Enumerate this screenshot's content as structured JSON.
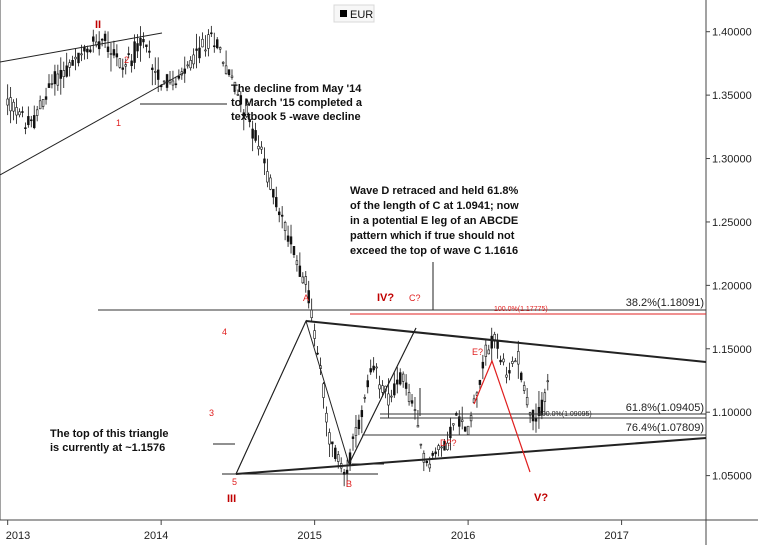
{
  "chart_data": {
    "type": "candlestick",
    "legend": {
      "label": "EUR",
      "swatch_color": "#000000",
      "placement": "top-center"
    },
    "y_axis": {
      "ticks": [
        "1.40000",
        "1.35000",
        "1.30000",
        "1.25000",
        "1.20000",
        "1.15000",
        "1.10000",
        "1.05000"
      ],
      "tick_values": [
        1.4,
        1.35,
        1.3,
        1.25,
        1.2,
        1.15,
        1.1,
        1.05
      ],
      "range": [
        1.015,
        1.425
      ]
    },
    "x_axis": {
      "ticks": [
        "2013",
        "2014",
        "2015",
        "2016",
        "2017"
      ],
      "tick_values": [
        2013.0,
        2014.0,
        2015.0,
        2016.0,
        2017.0
      ],
      "range": [
        2012.95,
        2017.55
      ]
    },
    "waypoints": [
      [
        2013.0,
        1.345
      ],
      [
        2013.15,
        1.325
      ],
      [
        2013.3,
        1.362
      ],
      [
        2013.5,
        1.382
      ],
      [
        2013.62,
        1.398
      ],
      [
        2013.75,
        1.372
      ],
      [
        2013.88,
        1.392
      ],
      [
        2014.0,
        1.362
      ],
      [
        2014.1,
        1.358
      ],
      [
        2014.28,
        1.39
      ],
      [
        2014.35,
        1.396
      ],
      [
        2014.45,
        1.365
      ],
      [
        2014.55,
        1.338
      ],
      [
        2014.65,
        1.305
      ],
      [
        2014.75,
        1.265
      ],
      [
        2014.85,
        1.232
      ],
      [
        2014.95,
        1.2
      ],
      [
        2015.05,
        1.125
      ],
      [
        2015.1,
        1.075
      ],
      [
        2015.2,
        1.052
      ],
      [
        2015.3,
        1.095
      ],
      [
        2015.38,
        1.135
      ],
      [
        2015.48,
        1.112
      ],
      [
        2015.58,
        1.128
      ],
      [
        2015.64,
        1.103
      ],
      [
        2015.72,
        1.06
      ],
      [
        2015.85,
        1.074
      ],
      [
        2015.92,
        1.095
      ],
      [
        2016.0,
        1.086
      ],
      [
        2016.1,
        1.142
      ],
      [
        2016.18,
        1.16
      ],
      [
        2016.25,
        1.125
      ],
      [
        2016.32,
        1.148
      ],
      [
        2016.4,
        1.1
      ],
      [
        2016.46,
        1.095
      ],
      [
        2016.52,
        1.124
      ]
    ],
    "fib_levels": [
      {
        "label": "38.2%(1.18091)",
        "value": 1.18091,
        "color": "#333333"
      },
      {
        "label": "100.0%(1.17775)",
        "value": 1.17775,
        "color": "#e02020"
      },
      {
        "label": "61.8%(1.09405)",
        "value": 1.09405,
        "color": "#333333"
      },
      {
        "label": "100.0%(1.09095)",
        "value": 1.09095,
        "color": "#333333"
      },
      {
        "label": "76.4%(1.07809)",
        "value": 1.07809,
        "color": "#333333"
      }
    ],
    "wave_labels_early": [
      "1",
      "2",
      "3",
      "4",
      "5"
    ],
    "wave_labels_major": [
      "II",
      "III",
      "IV?",
      "V?"
    ],
    "triangle_labels": [
      "A",
      "B",
      "C?",
      "D??",
      "E?"
    ],
    "annotations": {
      "decline": "The decline from May '14 to March '15 completed a textbook 5 -wave decline",
      "decline_lines": [
        "The decline from May '14",
        "to March '15 completed a",
        "textbook 5 -wave decline"
      ],
      "wave_d_lines": [
        "Wave D retraced and held 61.8%",
        "of the length of C at 1.0941;  now",
        "in a potential E leg of an ABCDE",
        "pattern which if true should not",
        "exceed the top of wave C 1.1616"
      ],
      "triangle_lines": [
        "The top of this triangle",
        "is currently at ~1.1576"
      ]
    }
  }
}
